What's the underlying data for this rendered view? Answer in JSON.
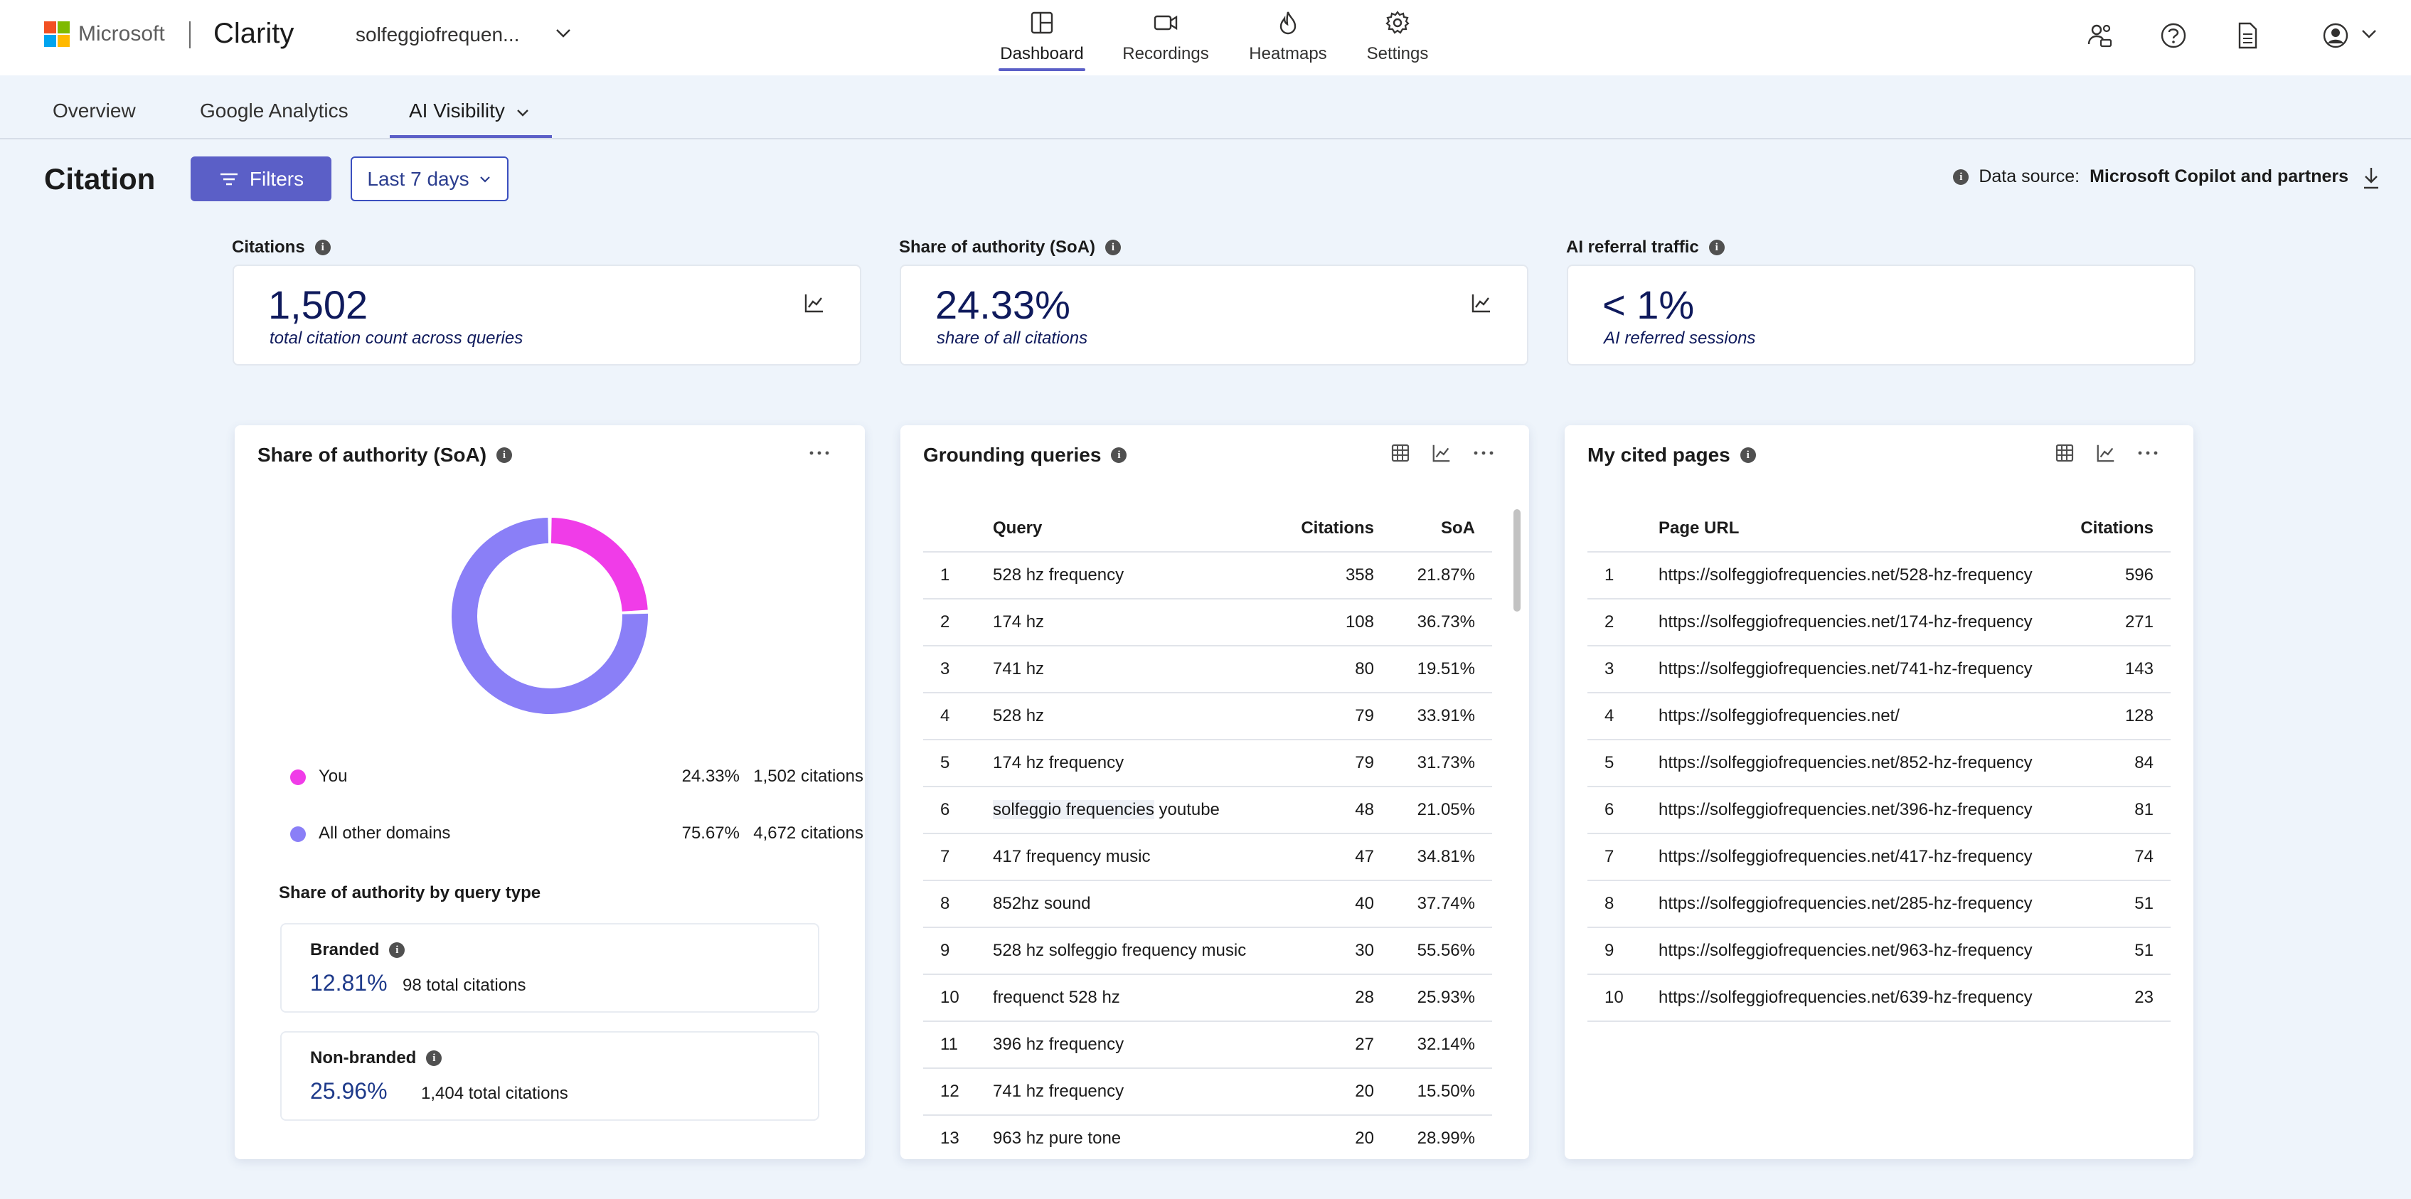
{
  "brand": {
    "company": "Microsoft",
    "product": "Clarity",
    "project": "solfeggiofrequen...",
    "logo_colors": [
      "#f25022",
      "#7fba00",
      "#00a4ef",
      "#ffb900"
    ]
  },
  "topnav": {
    "items": [
      {
        "label": "Dashboard",
        "icon": "dashboard-icon",
        "active": true
      },
      {
        "label": "Recordings",
        "icon": "video-icon",
        "active": false
      },
      {
        "label": "Heatmaps",
        "icon": "flame-icon",
        "active": false
      },
      {
        "label": "Settings",
        "icon": "gear-icon",
        "active": false
      }
    ]
  },
  "right_icons": [
    "people-icon",
    "help-icon",
    "document-icon",
    "account-icon"
  ],
  "subnav": {
    "tabs": [
      {
        "label": "Overview"
      },
      {
        "label": "Google Analytics"
      },
      {
        "label": "AI Visibility",
        "active": true
      }
    ]
  },
  "header": {
    "title": "Citation",
    "filters_label": "Filters",
    "range_label": "Last 7 days",
    "datasource_prefix": "Data source:",
    "datasource_value": "Microsoft Copilot and partners"
  },
  "kpis": [
    {
      "label": "Citations",
      "value": "1,502",
      "sub": "total citation count across queries"
    },
    {
      "label": "Share of authority (SoA)",
      "value": "24.33%",
      "sub": "share of all citations"
    },
    {
      "label": "AI referral traffic",
      "value": "< 1%",
      "sub": "AI referred sessions"
    }
  ],
  "soa_panel": {
    "title": "Share of authority (SoA)",
    "chart_data": {
      "type": "pie",
      "categories": [
        "You",
        "All other domains"
      ],
      "values": [
        24.33,
        75.67
      ],
      "colors": [
        "#f03ce8",
        "#8a7ff7"
      ]
    },
    "legend": [
      {
        "name": "You",
        "pct": "24.33%",
        "count": "1,502 citations",
        "color": "#f03ce8"
      },
      {
        "name": "All other domains",
        "pct": "75.67%",
        "count": "4,672 citations",
        "color": "#8a7ff7"
      }
    ],
    "by_type_heading": "Share of authority by query type",
    "types": [
      {
        "title": "Branded",
        "pct": "12.81%",
        "count": "98 total citations"
      },
      {
        "title": "Non-branded",
        "pct": "25.96%",
        "count": "1,404 total citations"
      }
    ]
  },
  "grounding_panel": {
    "title": "Grounding queries",
    "columns": [
      "Query",
      "Citations",
      "SoA"
    ],
    "rows": [
      {
        "n": "1",
        "query": "528 hz frequency",
        "citations": "358",
        "soa": "21.87%"
      },
      {
        "n": "2",
        "query": "174 hz",
        "citations": "108",
        "soa": "36.73%"
      },
      {
        "n": "3",
        "query": "741 hz",
        "citations": "80",
        "soa": "19.51%"
      },
      {
        "n": "4",
        "query": "528 hz",
        "citations": "79",
        "soa": "33.91%"
      },
      {
        "n": "5",
        "query": "174 hz frequency",
        "citations": "79",
        "soa": "31.73%"
      },
      {
        "n": "6",
        "query_hl": "solfeggio frequencies",
        "query_rest": " youtube",
        "citations": "48",
        "soa": "21.05%"
      },
      {
        "n": "7",
        "query": "417 frequency music",
        "citations": "47",
        "soa": "34.81%"
      },
      {
        "n": "8",
        "query": "852hz sound",
        "citations": "40",
        "soa": "37.74%"
      },
      {
        "n": "9",
        "query": "528 hz solfeggio frequency music",
        "citations": "30",
        "soa": "55.56%"
      },
      {
        "n": "10",
        "query": "frequenct 528 hz",
        "citations": "28",
        "soa": "25.93%"
      },
      {
        "n": "11",
        "query": "396 hz frequency",
        "citations": "27",
        "soa": "32.14%"
      },
      {
        "n": "12",
        "query": "741 hz frequency",
        "citations": "20",
        "soa": "15.50%"
      },
      {
        "n": "13",
        "query": "963 hz pure tone",
        "citations": "20",
        "soa": "28.99%"
      }
    ]
  },
  "pages_panel": {
    "title": "My cited pages",
    "columns": [
      "Page URL",
      "Citations"
    ],
    "rows": [
      {
        "n": "1",
        "url": "https://solfeggiofrequencies.net/528-hz-frequency",
        "citations": "596"
      },
      {
        "n": "2",
        "url": "https://solfeggiofrequencies.net/174-hz-frequency",
        "citations": "271"
      },
      {
        "n": "3",
        "url": "https://solfeggiofrequencies.net/741-hz-frequency",
        "citations": "143"
      },
      {
        "n": "4",
        "url": "https://solfeggiofrequencies.net/",
        "citations": "128"
      },
      {
        "n": "5",
        "url": "https://solfeggiofrequencies.net/852-hz-frequency",
        "citations": "84"
      },
      {
        "n": "6",
        "url": "https://solfeggiofrequencies.net/396-hz-frequency",
        "citations": "81"
      },
      {
        "n": "7",
        "url": "https://solfeggiofrequencies.net/417-hz-frequency",
        "citations": "74"
      },
      {
        "n": "8",
        "url": "https://solfeggiofrequencies.net/285-hz-frequency",
        "citations": "51"
      },
      {
        "n": "9",
        "url": "https://solfeggiofrequencies.net/963-hz-frequency",
        "citations": "51"
      },
      {
        "n": "10",
        "url": "https://solfeggiofrequencies.net/639-hz-frequency",
        "citations": "23"
      }
    ]
  }
}
